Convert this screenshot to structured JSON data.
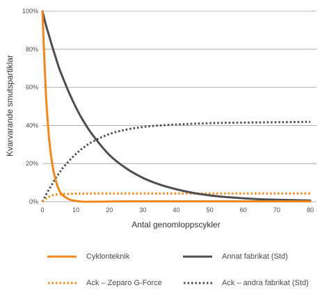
{
  "chart_data": {
    "type": "line",
    "xlabel": "Antal genomloppscykler",
    "ylabel": "Kvarvarande smutspartiklar",
    "xlim": [
      0,
      80
    ],
    "ylim": [
      0,
      100
    ],
    "x_ticks": [
      "0",
      "10",
      "20",
      "30",
      "40",
      "50",
      "60",
      "70",
      "80"
    ],
    "y_ticks": [
      "0%",
      "20%",
      "40%",
      "60%",
      "80%",
      "100%"
    ],
    "grid": "horizontal",
    "legend_position": "bottom",
    "x": [
      0,
      1,
      2,
      3,
      4,
      5,
      6,
      8,
      10,
      12,
      15,
      20,
      25,
      30,
      35,
      40,
      45,
      50,
      55,
      60,
      65,
      70,
      75,
      80
    ],
    "series": [
      {
        "name": "Cyklonteknik",
        "color": "#f0871e",
        "style": "solid",
        "values": [
          100,
          58,
          33,
          19,
          11,
          6,
          3.5,
          1.2,
          0.4,
          0,
          0,
          0.1,
          0.2,
          0.2,
          0.2,
          0.2,
          0.2,
          0.2,
          0.2,
          0.2,
          0.2,
          0.2,
          0.2,
          0.2
        ]
      },
      {
        "name": "Annat fabrikat (Std)",
        "color": "#4d4d4f",
        "style": "solid",
        "values": [
          100,
          93,
          87,
          81,
          75.5,
          70,
          65.5,
          57,
          49.5,
          43,
          35,
          24.5,
          17.5,
          12.5,
          9,
          6.5,
          4.6,
          3.3,
          2.4,
          1.8,
          1.3,
          1,
          0.8,
          0.6
        ]
      },
      {
        "name": "Ack – Zeparo G-Force",
        "color": "#f0871e",
        "style": "dotted",
        "values": [
          0,
          1.5,
          2.6,
          3.3,
          3.7,
          3.9,
          4,
          4.1,
          4.2,
          4.2,
          4.3,
          4.3,
          4.3,
          4.3,
          4.3,
          4.3,
          4.3,
          4.3,
          4.3,
          4.3,
          4.3,
          4.3,
          4.3,
          4.3
        ]
      },
      {
        "name": "Ack – andra fabrikat (Std)",
        "color": "#4d4d4f",
        "style": "dotted",
        "values": [
          0,
          3.5,
          6.5,
          9.5,
          12.5,
          15,
          17.5,
          21.5,
          25,
          28,
          31.5,
          35.5,
          37.8,
          39.2,
          40,
          40.5,
          40.9,
          41.2,
          41.4,
          41.5,
          41.6,
          41.7,
          41.8,
          41.9
        ]
      }
    ]
  }
}
